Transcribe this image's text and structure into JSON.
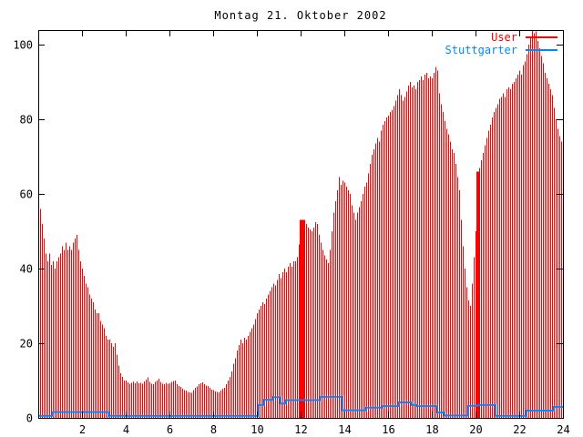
{
  "title": "Montag 21. Oktober 2002",
  "colors": {
    "user": "#ff0000",
    "stuttgarter": "#0088ff",
    "axis": "#000000",
    "background": "#ffffff"
  },
  "legend": {
    "entries": [
      {
        "label": "User",
        "color": "#ff0000"
      },
      {
        "label": "Stuttgarter",
        "color": "#0088ff"
      }
    ]
  },
  "chart_data": {
    "type": "bar",
    "title": "Montag 21. Oktober 2002",
    "xlabel": "",
    "ylabel": "",
    "xlim": [
      0,
      24
    ],
    "ylim": [
      0,
      104
    ],
    "grid": false,
    "legend_position": "top-right-inside",
    "x_ticks": [
      2,
      4,
      6,
      8,
      10,
      12,
      14,
      16,
      18,
      20,
      22,
      24
    ],
    "y_ticks": [
      0,
      20,
      40,
      60,
      80,
      100
    ],
    "x_unit": "hour-of-day",
    "bar_interval_hours": 0.0833,
    "series": [
      {
        "name": "User",
        "style": "impulses",
        "color": "#ff0000",
        "values": [
          57,
          56,
          52,
          48,
          44,
          42,
          44,
          41,
          42,
          40,
          42,
          43,
          44,
          46,
          45,
          47,
          45,
          46,
          45,
          47,
          48,
          49,
          45,
          42,
          40,
          38,
          36,
          35,
          33,
          32,
          31,
          29,
          28,
          28,
          26,
          25,
          24,
          22,
          21,
          21,
          20,
          19,
          20,
          17,
          14,
          12,
          11,
          10,
          10,
          9.5,
          9.2,
          9.4,
          9.7,
          9.3,
          9.8,
          9.3,
          9.4,
          9.2,
          9.8,
          10.2,
          10.8,
          9.6,
          9.2,
          9,
          9.6,
          10,
          10.5,
          9.6,
          9.2,
          9,
          9.4,
          9.1,
          9.3,
          9.6,
          9.9,
          10,
          9,
          8.5,
          8.3,
          7.8,
          7.4,
          7.3,
          7,
          6.8,
          6.7,
          7.4,
          8,
          8.4,
          9,
          9.3,
          9.5,
          9,
          8.6,
          8.5,
          8,
          7.6,
          7.4,
          7.1,
          6.9,
          6.8,
          7.3,
          7.8,
          8,
          9,
          10,
          11,
          12.5,
          14.5,
          16,
          18,
          19.5,
          21,
          20,
          21.5,
          21,
          22,
          23,
          24,
          25,
          26.5,
          28,
          29,
          30,
          31,
          30.5,
          32,
          33,
          34,
          35,
          36,
          35.5,
          37,
          38.5,
          37.5,
          39,
          40,
          39,
          40.5,
          41.5,
          40.5,
          42,
          42,
          43,
          46.5,
          53,
          52.5,
          52,
          52,
          51,
          50.5,
          50,
          51,
          52.5,
          52,
          49,
          47,
          45,
          43.5,
          42.5,
          41.5,
          45,
          50,
          55,
          58,
          61,
          64.5,
          62.5,
          63.5,
          63,
          62,
          61,
          60,
          57,
          55,
          53,
          55,
          56.5,
          58,
          60,
          62,
          63,
          65.5,
          68,
          70.5,
          72,
          73.5,
          75,
          74,
          77,
          78.5,
          79.5,
          80.5,
          81,
          82,
          82.5,
          83.5,
          85,
          86.5,
          88,
          86.5,
          85,
          86,
          87.5,
          89,
          90,
          88.5,
          89,
          88,
          90,
          90.5,
          91.5,
          90.5,
          92,
          92.5,
          91,
          91.5,
          91,
          92.5,
          94,
          93,
          87,
          84,
          82,
          79.5,
          77.5,
          76,
          74,
          72,
          71,
          68,
          64.5,
          61,
          53,
          46,
          40,
          35,
          31.5,
          30,
          36,
          43,
          50,
          66,
          67,
          69,
          71,
          73,
          75,
          77,
          78.5,
          80.5,
          82,
          83,
          84,
          85.5,
          86,
          87,
          86,
          88,
          88.5,
          88,
          89.5,
          90,
          91,
          92,
          93,
          92,
          94.5,
          95.5,
          97.5,
          100,
          102,
          104,
          103,
          103.5,
          101,
          99,
          97,
          95,
          92.5,
          91,
          89.5,
          88,
          86.5,
          83,
          80,
          77.5,
          75.5,
          74
        ]
      },
      {
        "name": "Stuttgarter",
        "style": "line",
        "color": "#0088ff",
        "segments": [
          [
            0.0,
            0.67,
            0.3
          ],
          [
            0.67,
            3.2,
            1.3
          ],
          [
            3.2,
            10.08,
            0.3
          ],
          [
            10.08,
            10.33,
            3.2
          ],
          [
            10.33,
            10.75,
            4.6
          ],
          [
            10.75,
            11.08,
            5.3
          ],
          [
            11.08,
            11.33,
            3.6
          ],
          [
            11.33,
            12.92,
            4.5
          ],
          [
            12.92,
            13.92,
            5.4
          ],
          [
            13.92,
            15.0,
            1.8
          ],
          [
            15.0,
            15.75,
            2.5
          ],
          [
            15.75,
            16.5,
            2.9
          ],
          [
            16.5,
            17.08,
            3.9
          ],
          [
            17.08,
            17.33,
            3.2
          ],
          [
            17.33,
            18.25,
            2.9
          ],
          [
            18.25,
            18.58,
            1.2
          ],
          [
            18.58,
            19.67,
            0.4
          ],
          [
            19.67,
            20.08,
            3.0
          ],
          [
            20.08,
            20.92,
            3.2
          ],
          [
            20.92,
            22.33,
            0.3
          ],
          [
            22.33,
            23.58,
            1.7
          ],
          [
            23.58,
            24.0,
            2.7
          ]
        ]
      }
    ],
    "solid_bands": [
      [
        11.95,
        12.2,
        53
      ],
      [
        20.05,
        20.2,
        66
      ]
    ]
  }
}
